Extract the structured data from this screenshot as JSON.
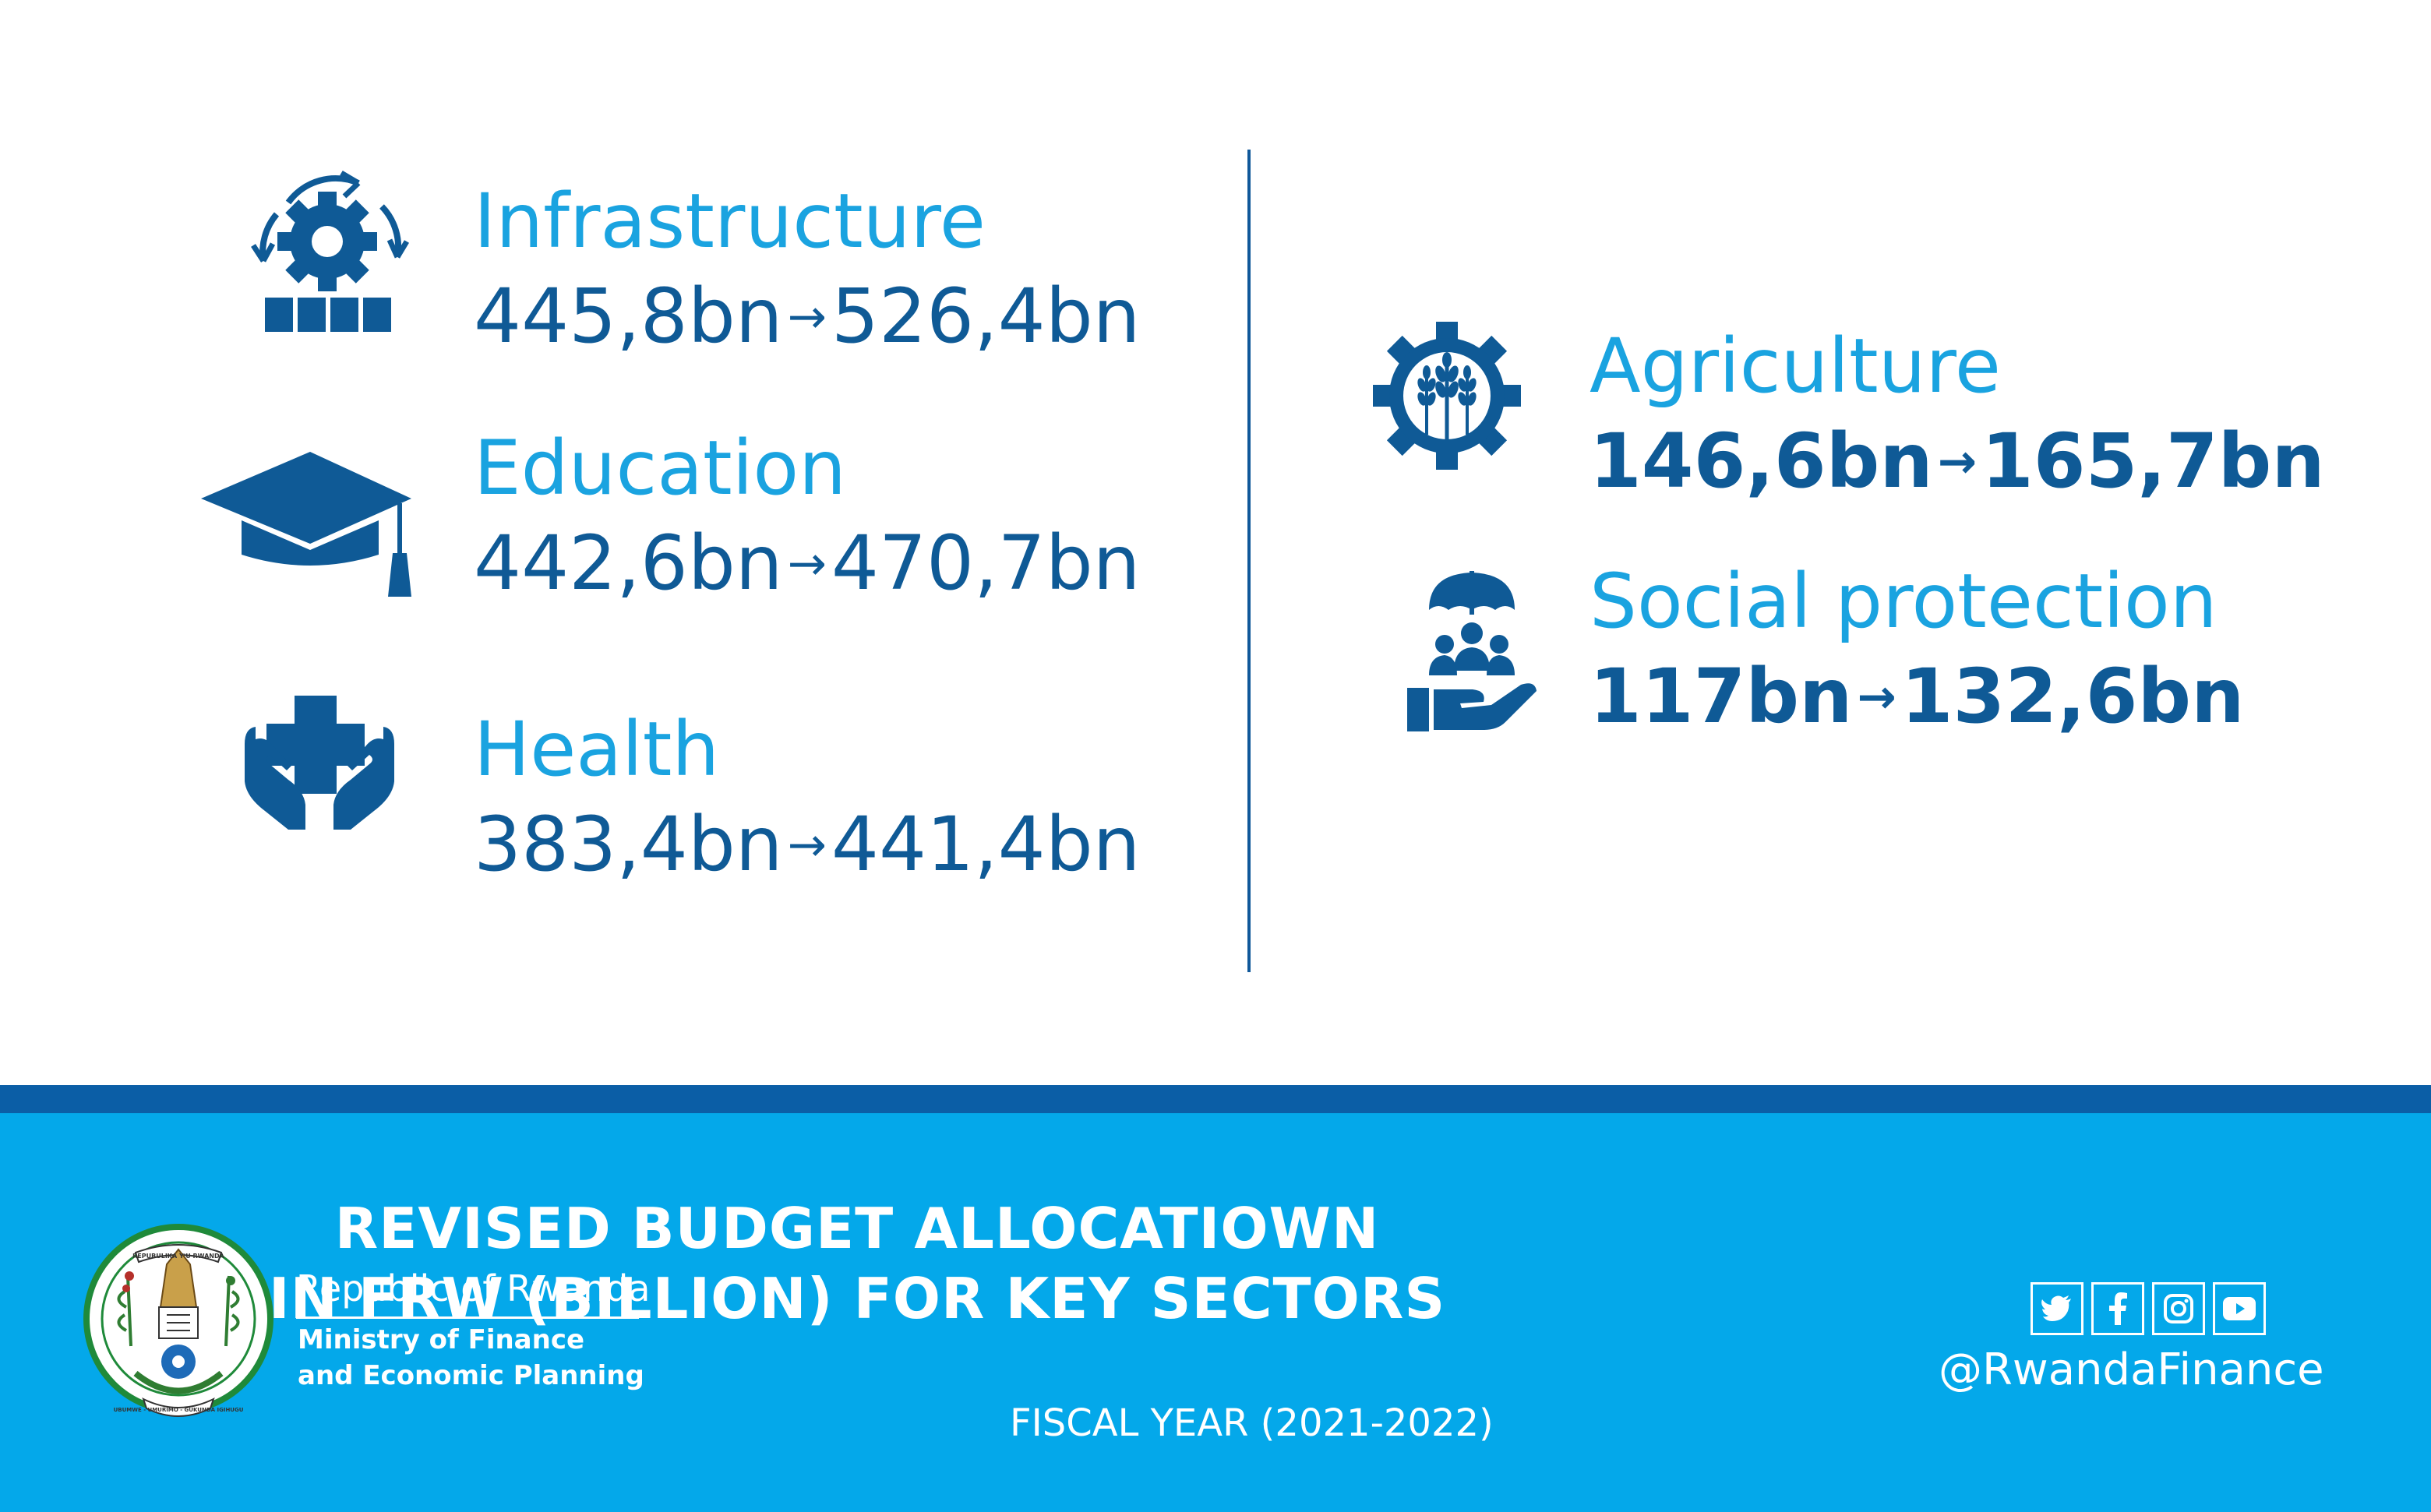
{
  "sectors": [
    {
      "name": "Infrastructure",
      "from": "445,8bn",
      "to": "526,4bn",
      "icon": "infrastructure-gear-icon"
    },
    {
      "name": "Education",
      "from": "442,6bn",
      "to": "470,7bn",
      "icon": "graduation-cap-icon"
    },
    {
      "name": "Health",
      "from": "383,4bn",
      "to": "441,4bn",
      "icon": "health-hands-cross-icon"
    },
    {
      "name": "Agriculture",
      "from": "146,6bn",
      "to": "165,7bn",
      "icon": "wheat-gear-icon"
    },
    {
      "name": "Social protection",
      "from": "117bn",
      "to": "132,6bn",
      "icon": "umbrella-hand-people-icon"
    }
  ],
  "arrow": "→",
  "footer": {
    "title_line1": "REVISED BUDGET ALLOCATIOWN",
    "title_line2": "IN FRW (BILLION)  FOR KEY SECTORS",
    "fiscal_year": "FISCAL YEAR (2021-2022)",
    "republic": "Republic of Rwanda",
    "ministry_line1": "Ministry of Finance",
    "ministry_line2": "and Economic Planning",
    "handle": "@RwandaFinance",
    "social_icons": [
      "twitter-icon",
      "facebook-icon",
      "instagram-icon",
      "youtube-icon"
    ],
    "emblem_text_top": "REPUBULIKA Y'U RWANDA",
    "emblem_text_bottom": "UBUMWE - UMURIMO - GUKUNDA IGIHUGU"
  },
  "colors": {
    "light_blue": "#1aa3e0",
    "dark_blue": "#0f5a96",
    "footer_blue": "#04a8ea",
    "footer_stripe": "#0b5ea6"
  }
}
